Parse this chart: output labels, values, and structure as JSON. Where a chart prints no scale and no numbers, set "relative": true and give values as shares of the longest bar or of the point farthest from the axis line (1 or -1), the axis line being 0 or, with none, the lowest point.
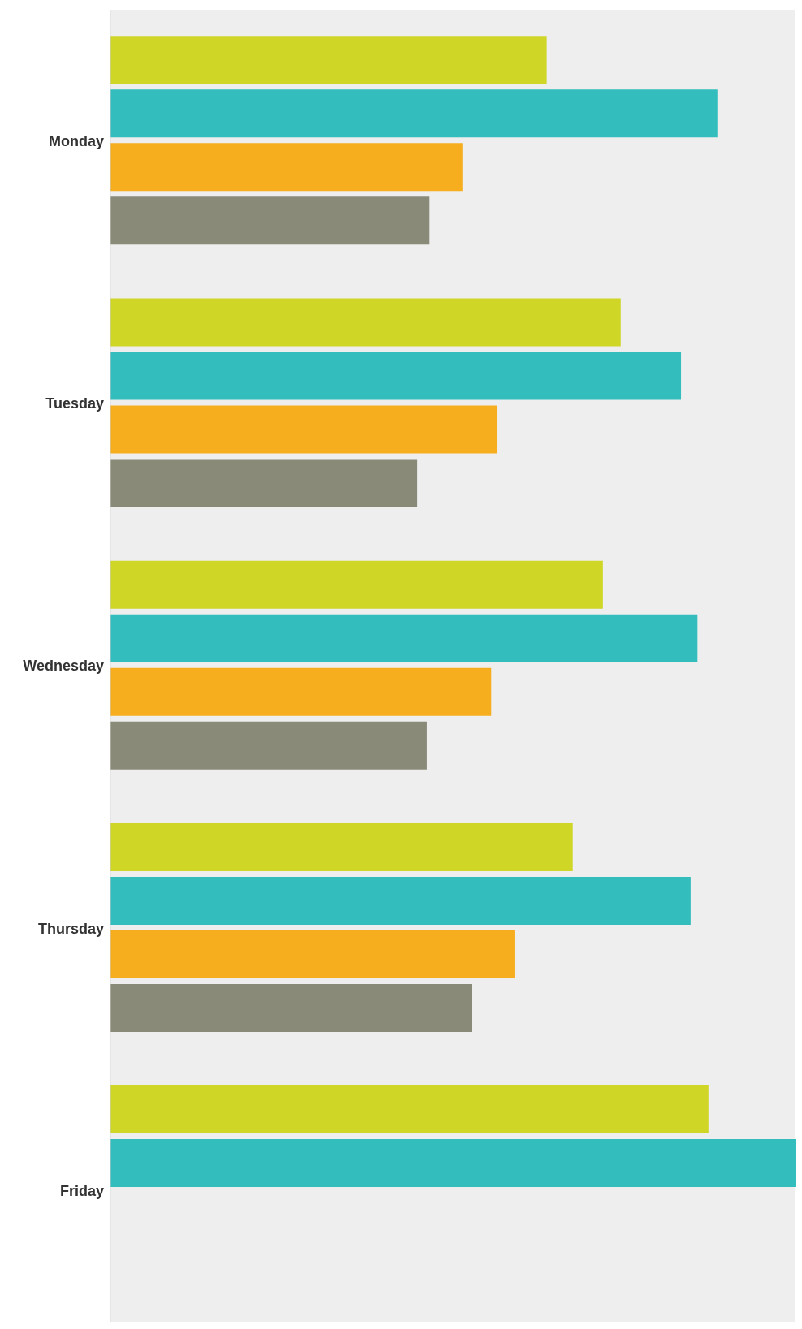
{
  "chart_data": {
    "type": "bar",
    "orientation": "horizontal",
    "relative": true,
    "grid": "x",
    "categories": [
      "Monday",
      "Tuesday",
      "Wednesday",
      "Thursday",
      "Friday"
    ],
    "series": [
      {
        "color": "#cfd626",
        "values": [
          0.637,
          0.745,
          0.719,
          0.675,
          0.873
        ]
      },
      {
        "color": "#33bdbd",
        "values": [
          0.886,
          0.833,
          0.857,
          0.847,
          1
        ]
      },
      {
        "color": "#f6ae1f",
        "values": [
          0.514,
          0.564,
          0.556,
          0.59,
          null
        ]
      },
      {
        "color": "#8a8a79",
        "values": [
          0.466,
          0.448,
          0.462,
          0.528,
          null
        ]
      }
    ]
  }
}
